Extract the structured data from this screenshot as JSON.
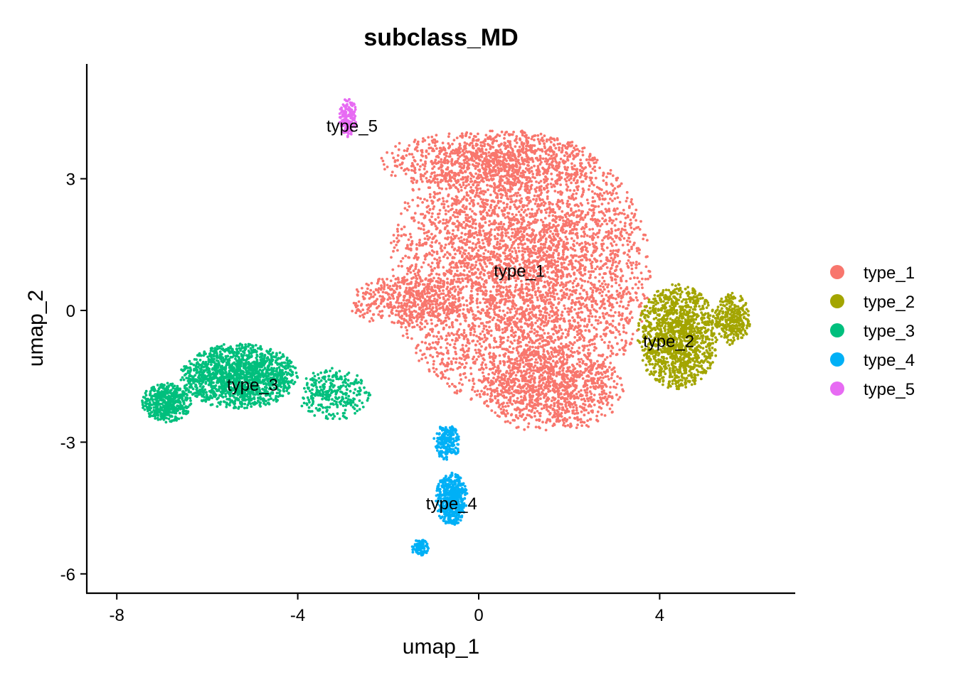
{
  "chart_data": {
    "type": "scatter",
    "title": "subclass_MD",
    "xlabel": "umap_1",
    "ylabel": "umap_2",
    "xlim": [
      -8.5,
      7.0
    ],
    "ylim": [
      -6.4,
      5.6
    ],
    "xticks": [
      -8,
      -4,
      0,
      4
    ],
    "xtick_labels": [
      "-8",
      "-4",
      "0",
      "4"
    ],
    "yticks": [
      -6,
      -3,
      0,
      3
    ],
    "ytick_labels": [
      "-6",
      "-3",
      "0",
      "3"
    ],
    "grid": false,
    "legend_position": "right",
    "series": [
      {
        "name": "type_1",
        "color": "#F8766D",
        "label_position": [
          0.9,
          0.9
        ],
        "clusters": [
          {
            "cx": 0.9,
            "cy": 0.9,
            "sx": 2.9,
            "sy": 3.2,
            "n": 5200
          },
          {
            "cx": 1.6,
            "cy": -1.8,
            "sx": 1.6,
            "sy": 1.0,
            "n": 900
          },
          {
            "cx": -1.6,
            "cy": 0.2,
            "sx": 1.3,
            "sy": 0.6,
            "n": 400
          },
          {
            "cx": 0.2,
            "cy": 3.4,
            "sx": 2.4,
            "sy": 0.7,
            "n": 800
          }
        ]
      },
      {
        "name": "type_2",
        "color": "#A3A500",
        "label_position": [
          4.2,
          -0.7
        ],
        "clusters": [
          {
            "cx": 4.4,
            "cy": -0.6,
            "sx": 0.9,
            "sy": 1.2,
            "n": 1300
          },
          {
            "cx": 5.6,
            "cy": -0.2,
            "sx": 0.4,
            "sy": 0.6,
            "n": 300
          }
        ]
      },
      {
        "name": "type_3",
        "color": "#00BF7D",
        "label_position": [
          -5.0,
          -1.7
        ],
        "clusters": [
          {
            "cx": -5.3,
            "cy": -1.5,
            "sx": 1.3,
            "sy": 0.75,
            "n": 1500
          },
          {
            "cx": -6.9,
            "cy": -2.1,
            "sx": 0.55,
            "sy": 0.45,
            "n": 500
          },
          {
            "cx": -3.2,
            "cy": -1.9,
            "sx": 0.8,
            "sy": 0.6,
            "n": 300
          }
        ]
      },
      {
        "name": "type_4",
        "color": "#00B0F6",
        "label_position": [
          -0.6,
          -4.4
        ],
        "clusters": [
          {
            "cx": -0.6,
            "cy": -4.3,
            "sx": 0.35,
            "sy": 0.6,
            "n": 500
          },
          {
            "cx": -0.7,
            "cy": -3.0,
            "sx": 0.3,
            "sy": 0.4,
            "n": 200
          },
          {
            "cx": -1.3,
            "cy": -5.4,
            "sx": 0.2,
            "sy": 0.2,
            "n": 80
          }
        ]
      },
      {
        "name": "type_5",
        "color": "#E76BF3",
        "label_position": [
          -2.8,
          4.2
        ],
        "clusters": [
          {
            "cx": -2.9,
            "cy": 4.4,
            "sx": 0.2,
            "sy": 0.45,
            "n": 150
          }
        ]
      }
    ]
  }
}
